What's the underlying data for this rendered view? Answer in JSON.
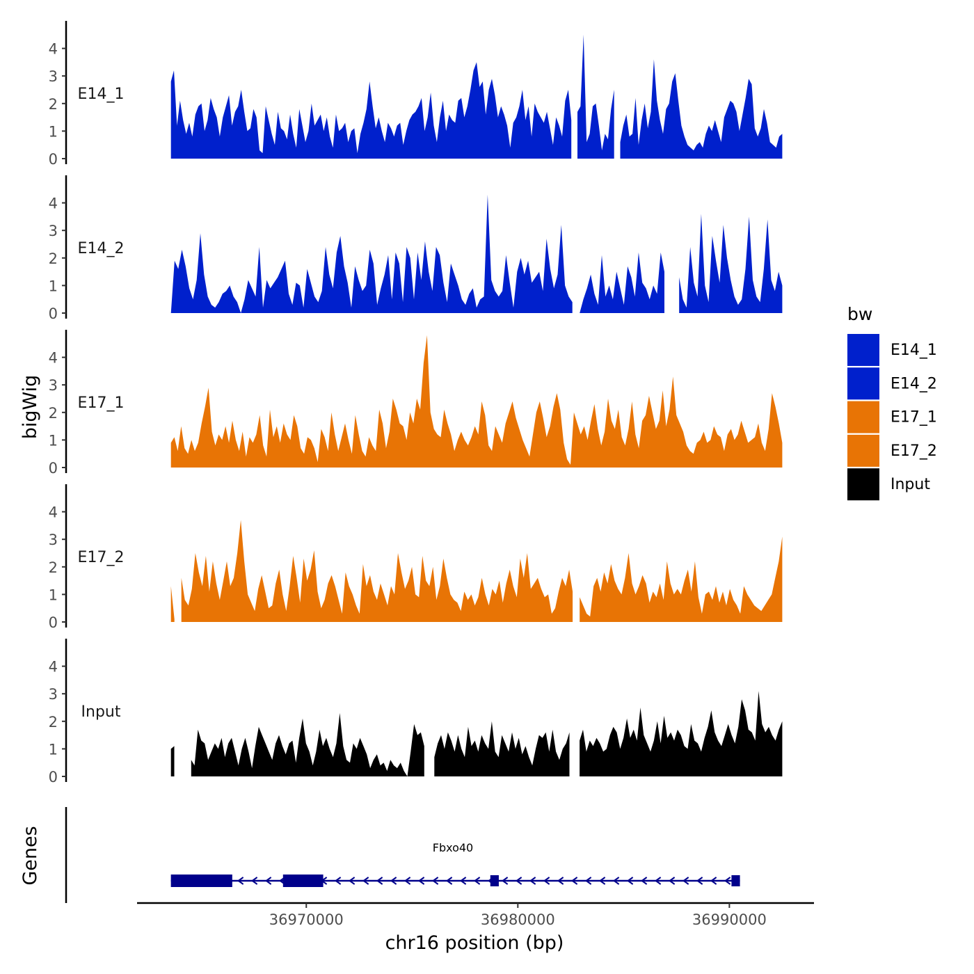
{
  "chart_data": {
    "type": "area",
    "title": "",
    "ylabel": "bigWig",
    "xlabel": "chr16 position (bp)",
    "genes_label": "Genes",
    "xlim": [
      36962000,
      36994000
    ],
    "ylim": [
      0,
      5
    ],
    "y_ticks": [
      0,
      1,
      2,
      3,
      4
    ],
    "x_ticks": [
      36970000,
      36980000,
      36990000
    ],
    "x_tick_labels": [
      "36970000",
      "36980000",
      "36990000"
    ],
    "legend": {
      "title": "bw",
      "position": "right",
      "entries": [
        {
          "label": "E14_1",
          "color": "#0020CC"
        },
        {
          "label": "E14_2",
          "color": "#0020CC"
        },
        {
          "label": "E17_1",
          "color": "#E87405"
        },
        {
          "label": "E17_2",
          "color": "#E87405"
        },
        {
          "label": "Input",
          "color": "#000000"
        }
      ]
    },
    "track_start": 36963600,
    "track_end": 36992500,
    "series": [
      {
        "name": "E14_1",
        "color": "#0020CC",
        "gaps": [
          [
            36982600,
            36982800
          ],
          [
            36984600,
            36984800
          ]
        ],
        "values": [
          2.8,
          3.2,
          1.2,
          2.1,
          1.4,
          0.9,
          1.3,
          0.8,
          1.6,
          1.9,
          2.0,
          1.0,
          1.4,
          2.2,
          1.8,
          1.5,
          0.8,
          1.5,
          1.9,
          2.3,
          1.2,
          1.7,
          1.9,
          2.5,
          1.7,
          1.0,
          1.1,
          1.8,
          1.5,
          0.3,
          0.2,
          1.9,
          1.4,
          0.9,
          0.5,
          1.7,
          1.1,
          1.0,
          0.7,
          1.6,
          0.9,
          0.4,
          1.8,
          1.2,
          0.6,
          1.0,
          2.0,
          1.2,
          1.4,
          1.6,
          1.0,
          1.5,
          0.8,
          0.4,
          1.6,
          1.0,
          1.1,
          1.3,
          0.6,
          1.0,
          1.1,
          0.2,
          0.9,
          1.3,
          1.8,
          2.8,
          1.9,
          1.1,
          1.5,
          1.0,
          0.6,
          1.3,
          1.1,
          0.8,
          1.2,
          1.3,
          0.5,
          1.0,
          1.4,
          1.6,
          1.7,
          1.9,
          2.2,
          1.0,
          1.5,
          2.4,
          1.2,
          0.6,
          1.5,
          2.1,
          1.0,
          1.6,
          1.4,
          1.3,
          2.1,
          2.2,
          1.5,
          1.9,
          2.5,
          3.2,
          3.5,
          2.6,
          2.8,
          1.6,
          2.5,
          2.9,
          2.3,
          1.5,
          1.9,
          1.6,
          1.2,
          0.4,
          1.3,
          1.5,
          1.9,
          2.5,
          1.4,
          1.9,
          0.8,
          2.0,
          1.7,
          1.5,
          1.3,
          1.7,
          1.1,
          0.5,
          1.5,
          1.2,
          0.8,
          2.1,
          2.5,
          1.4,
          1.6,
          1.7,
          1.9,
          4.5,
          0.6,
          0.9,
          1.9,
          2.0,
          1.2,
          0.3,
          0.9,
          0.7,
          1.8,
          2.5,
          1.0,
          0.6,
          1.2,
          1.6,
          0.8,
          0.9,
          2.2,
          0.5,
          1.4,
          2.0,
          1.1,
          1.7,
          3.6,
          2.1,
          1.4,
          0.9,
          1.8,
          2.0,
          2.8,
          3.1,
          2.1,
          1.2,
          0.8,
          0.5,
          0.4,
          0.3,
          0.5,
          0.6,
          0.4,
          0.9,
          1.2,
          1.0,
          1.4,
          1.0,
          0.6,
          1.5,
          1.8,
          2.1,
          2.0,
          1.7,
          1.0,
          1.6,
          2.2,
          2.9,
          2.7,
          1.1,
          0.8,
          1.1,
          1.8,
          1.3,
          0.6,
          0.5,
          0.4,
          0.8,
          0.9
        ]
      },
      {
        "name": "E14_2",
        "color": "#0020CC",
        "gaps": [
          [
            36982600,
            36982800
          ],
          [
            36987000,
            36987600
          ]
        ],
        "values": [
          0.0,
          1.9,
          1.6,
          2.3,
          1.7,
          0.9,
          0.5,
          1.2,
          2.9,
          1.4,
          0.6,
          0.3,
          0.2,
          0.4,
          0.7,
          0.8,
          1.0,
          0.6,
          0.4,
          0.0,
          0.5,
          1.2,
          0.9,
          0.6,
          2.4,
          0.2,
          1.2,
          0.9,
          1.1,
          1.3,
          1.6,
          1.9,
          0.7,
          0.3,
          1.1,
          1.0,
          0.2,
          1.6,
          1.1,
          0.6,
          0.4,
          0.8,
          2.4,
          1.4,
          0.9,
          2.2,
          2.8,
          1.7,
          1.1,
          0.2,
          1.7,
          1.2,
          0.8,
          1.0,
          2.3,
          1.8,
          0.3,
          0.9,
          1.4,
          2.1,
          0.5,
          2.2,
          1.8,
          0.4,
          2.4,
          2.0,
          0.5,
          2.2,
          1.2,
          2.6,
          1.5,
          0.8,
          2.4,
          2.1,
          1.1,
          0.4,
          1.8,
          1.4,
          1.0,
          0.5,
          0.3,
          0.7,
          0.9,
          0.2,
          0.5,
          0.6,
          4.3,
          1.2,
          0.8,
          0.6,
          0.8,
          2.1,
          1.1,
          0.2,
          1.5,
          2.0,
          1.4,
          1.9,
          1.1,
          1.3,
          1.5,
          0.8,
          2.7,
          1.6,
          0.9,
          1.4,
          3.2,
          1.0,
          0.6,
          0.4,
          0.2,
          0.0,
          0.5,
          0.9,
          1.4,
          0.7,
          0.3,
          2.1,
          0.6,
          1.0,
          0.5,
          1.5,
          0.9,
          0.3,
          1.7,
          1.3,
          0.6,
          2.2,
          1.1,
          0.9,
          0.5,
          1.0,
          0.7,
          2.2,
          1.5,
          0.7,
          0.3,
          0.0,
          1.3,
          0.5,
          0.2,
          2.4,
          1.1,
          0.6,
          3.6,
          1.0,
          0.4,
          2.8,
          1.9,
          1.1,
          3.2,
          2.0,
          1.2,
          0.6,
          0.3,
          0.5,
          1.6,
          3.5,
          1.2,
          0.6,
          0.4,
          1.6,
          3.4,
          1.2,
          0.8,
          1.5,
          1.0
        ]
      },
      {
        "name": "E17_1",
        "color": "#E87405",
        "gaps": [],
        "values": [
          0.9,
          1.1,
          0.6,
          1.5,
          0.7,
          0.5,
          1.0,
          0.6,
          0.9,
          1.6,
          2.2,
          2.9,
          1.3,
          0.8,
          1.2,
          1.0,
          1.5,
          0.9,
          1.7,
          1.0,
          0.6,
          1.3,
          0.4,
          1.1,
          0.9,
          1.2,
          1.9,
          0.8,
          0.4,
          2.1,
          1.1,
          1.5,
          0.9,
          1.6,
          1.2,
          1.0,
          1.9,
          1.5,
          0.7,
          0.5,
          1.1,
          1.0,
          0.7,
          0.2,
          1.4,
          1.1,
          0.6,
          2.0,
          1.2,
          0.6,
          1.1,
          1.6,
          1.0,
          0.5,
          1.9,
          1.2,
          0.6,
          0.4,
          1.1,
          0.8,
          0.6,
          2.1,
          1.6,
          0.7,
          1.3,
          2.5,
          2.1,
          1.6,
          1.5,
          1.0,
          2.0,
          1.6,
          2.5,
          2.1,
          3.8,
          4.8,
          2.0,
          1.4,
          1.2,
          1.1,
          2.1,
          1.6,
          1.2,
          0.6,
          1.0,
          1.3,
          1.0,
          0.8,
          1.1,
          1.5,
          1.2,
          2.4,
          1.9,
          0.8,
          0.6,
          1.5,
          1.2,
          0.9,
          1.6,
          2.0,
          2.4,
          1.8,
          1.4,
          1.0,
          0.7,
          0.4,
          1.2,
          2.0,
          2.4,
          1.8,
          1.1,
          1.5,
          2.2,
          2.7,
          2.1,
          0.9,
          0.3,
          0.1,
          2.0,
          1.6,
          1.2,
          1.5,
          1.0,
          1.7,
          2.3,
          1.4,
          0.8,
          1.3,
          2.5,
          1.7,
          1.4,
          2.1,
          1.1,
          0.8,
          1.4,
          2.4,
          1.2,
          0.7,
          1.7,
          1.9,
          2.6,
          2.0,
          1.4,
          1.7,
          2.8,
          1.5,
          2.1,
          3.3,
          1.9,
          1.6,
          1.3,
          0.8,
          0.6,
          0.5,
          0.9,
          1.0,
          1.3,
          0.9,
          1.0,
          1.5,
          1.2,
          1.1,
          0.6,
          1.2,
          1.4,
          1.0,
          1.2,
          1.7,
          1.3,
          0.9,
          1.0,
          1.1,
          1.6,
          0.9,
          0.6,
          1.4,
          2.7,
          2.2,
          1.6,
          0.9
        ]
      },
      {
        "name": "E17_2",
        "color": "#E87405",
        "gaps": [
          [
            36963800,
            36964000
          ],
          [
            36982600,
            36982800
          ]
        ],
        "values": [
          1.3,
          0.1,
          0.3,
          1.6,
          0.8,
          0.6,
          1.2,
          2.5,
          1.8,
          1.3,
          2.4,
          1.1,
          2.2,
          1.4,
          0.8,
          1.5,
          2.2,
          1.3,
          1.6,
          2.5,
          3.7,
          2.2,
          1.0,
          0.7,
          0.4,
          1.2,
          1.7,
          1.1,
          0.5,
          0.6,
          1.4,
          1.9,
          1.0,
          0.4,
          1.3,
          2.4,
          1.6,
          0.7,
          2.3,
          1.5,
          1.9,
          2.6,
          1.1,
          0.5,
          0.8,
          1.4,
          1.7,
          1.3,
          0.8,
          0.3,
          1.8,
          1.3,
          1.0,
          0.6,
          0.3,
          2.1,
          1.3,
          1.7,
          1.1,
          0.8,
          1.4,
          1.0,
          0.6,
          1.3,
          1.0,
          2.5,
          1.8,
          1.2,
          1.5,
          2.0,
          1.0,
          0.9,
          2.4,
          1.5,
          1.3,
          2.0,
          0.8,
          1.3,
          2.3,
          1.6,
          1.0,
          0.8,
          0.7,
          0.4,
          1.1,
          0.8,
          1.0,
          0.6,
          0.9,
          1.6,
          1.0,
          0.6,
          1.2,
          1.0,
          1.5,
          0.7,
          1.4,
          1.9,
          1.3,
          0.9,
          2.3,
          1.6,
          2.5,
          1.2,
          1.4,
          1.6,
          1.2,
          0.9,
          1.0,
          0.3,
          0.5,
          1.1,
          1.6,
          1.3,
          1.9,
          1.1,
          1.5,
          0.9,
          0.6,
          0.3,
          0.2,
          1.3,
          1.6,
          1.1,
          1.8,
          1.4,
          2.1,
          1.5,
          1.2,
          1.0,
          1.6,
          2.5,
          1.4,
          1.0,
          1.3,
          1.7,
          1.4,
          0.7,
          1.1,
          0.9,
          1.4,
          0.8,
          2.2,
          1.4,
          1.0,
          1.2,
          1.0,
          1.5,
          1.9,
          1.1,
          2.2,
          0.9,
          0.3,
          1.0,
          1.1,
          0.8,
          1.3,
          0.7,
          1.1,
          0.6,
          1.2,
          0.8,
          0.6,
          0.3,
          1.3,
          1.0,
          0.8,
          0.6,
          0.5,
          0.4,
          0.6,
          0.8,
          1.0,
          1.6,
          2.2,
          3.1
        ]
      },
      {
        "name": "Input",
        "color": "#000000",
        "gaps": [
          [
            36963800,
            36964400
          ],
          [
            36975700,
            36975900
          ],
          [
            36982600,
            36982800
          ]
        ],
        "values": [
          1.0,
          1.1,
          0.7,
          0.5,
          0.6,
          0.2,
          0.6,
          0.4,
          1.7,
          1.3,
          1.2,
          0.6,
          0.9,
          1.2,
          1.0,
          1.4,
          0.7,
          1.2,
          1.4,
          0.9,
          0.4,
          1.0,
          1.4,
          0.9,
          0.3,
          1.1,
          1.8,
          1.5,
          1.2,
          0.9,
          0.6,
          1.2,
          1.5,
          1.1,
          0.8,
          1.2,
          1.3,
          0.5,
          1.4,
          2.1,
          1.2,
          0.9,
          0.4,
          0.9,
          1.7,
          1.1,
          1.4,
          1.0,
          0.7,
          1.2,
          2.3,
          1.1,
          0.6,
          0.5,
          1.2,
          1.0,
          1.4,
          1.1,
          0.8,
          0.3,
          0.6,
          0.8,
          0.4,
          0.5,
          0.2,
          0.6,
          0.4,
          0.3,
          0.5,
          0.2,
          0.0,
          0.9,
          1.9,
          1.5,
          1.6,
          1.1,
          1.5,
          0.9,
          0.7,
          1.2,
          1.5,
          1.0,
          1.6,
          1.3,
          0.9,
          1.5,
          1.0,
          0.7,
          1.8,
          1.1,
          1.3,
          0.9,
          1.5,
          1.2,
          1.0,
          2.0,
          0.9,
          0.7,
          1.5,
          1.2,
          0.9,
          1.6,
          1.0,
          1.4,
          0.8,
          1.1,
          0.7,
          0.4,
          1.0,
          1.5,
          1.4,
          1.6,
          0.9,
          1.7,
          0.9,
          0.6,
          1.0,
          1.2,
          1.6,
          1.1,
          0.8,
          1.3,
          1.7,
          0.9,
          1.3,
          1.1,
          1.4,
          1.2,
          0.9,
          1.0,
          1.5,
          1.8,
          1.6,
          1.0,
          1.4,
          2.1,
          1.4,
          1.7,
          1.3,
          2.5,
          1.5,
          1.2,
          0.9,
          1.3,
          2.0,
          1.2,
          2.2,
          1.4,
          1.6,
          1.3,
          1.7,
          1.5,
          1.1,
          1.0,
          1.9,
          1.3,
          1.2,
          0.9,
          1.4,
          1.8,
          2.4,
          1.6,
          1.3,
          1.1,
          1.5,
          1.9,
          1.5,
          1.2,
          1.8,
          2.8,
          2.4,
          1.7,
          1.6,
          1.3,
          3.1,
          1.9,
          1.6,
          1.8,
          1.5,
          1.3,
          1.7,
          2.0
        ]
      }
    ],
    "gene": {
      "name": "Fbxo40",
      "strand": "-",
      "color": "#00008B",
      "start": 36963600,
      "end": 36990500,
      "thick_exons": [
        [
          36963600,
          36966500
        ],
        [
          36968900,
          36970800
        ]
      ],
      "thin_exons": [
        [
          36978700,
          36979100
        ],
        [
          36990100,
          36990500
        ]
      ]
    }
  }
}
